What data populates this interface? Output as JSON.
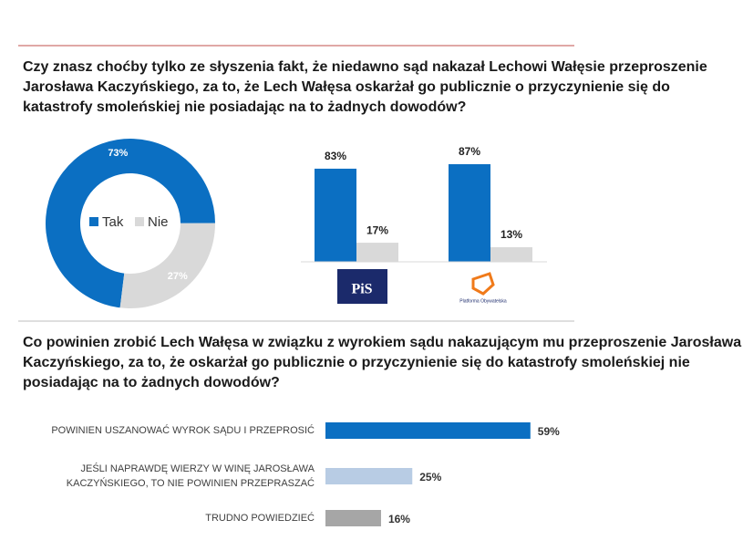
{
  "chart_data": [
    {
      "type": "pie",
      "title": "Czy znasz choćby tylko ze słyszenia fakt, że niedawno sąd nakazał Lechowi Wałęsie przeproszenie Jarosława Kaczyńskiego, za to, że Lech Wałęsa oskarżał go publicznie o przyczynienie się do katastrofy smoleńskiej nie posiadając na to żadnych dowodów?",
      "categories": [
        "Tak",
        "Nie"
      ],
      "values": [
        73,
        27
      ],
      "value_labels": [
        "73%",
        "27%"
      ],
      "colors": [
        "#0b6fc2",
        "#d9d9d9"
      ],
      "legend": "center"
    },
    {
      "type": "bar",
      "categories": [
        "PiS",
        "Platforma Obywatelska"
      ],
      "series": [
        {
          "color": "#0b6fc2",
          "values": [
            83,
            87
          ],
          "value_labels": [
            "83%",
            "87%"
          ]
        },
        {
          "color": "#d9d9d9",
          "values": [
            17,
            13
          ],
          "value_labels": [
            "17%",
            "13%"
          ]
        }
      ],
      "ylim": [
        0,
        100
      ]
    },
    {
      "type": "barh",
      "title": "Co powinien zrobić Lech Wałęsa w związku z wyrokiem sądu nakazującym mu przeproszenie Jarosława Kaczyńskiego, za to, że oskarżał go publicznie o przyczynienie się do katastrofy smoleńskiej nie posiadając na to żadnych dowodów?",
      "categories": [
        "POWINIEN USZANOWAĆ WYROK SĄDU I PRZEPROSIĆ",
        "JEŚLI NAPRAWDĘ WIERZY W WINĘ JAROSŁAWA KACZYŃSKIEGO, TO NIE POWINIEN PRZEPRASZAĆ",
        "TRUDNO POWIEDZIEĆ"
      ],
      "values": [
        59,
        25,
        16
      ],
      "value_labels": [
        "59%",
        "25%",
        "16%"
      ],
      "colors": [
        "#0b6fc2",
        "#b8cce4",
        "#a6a6a6"
      ],
      "xlim": [
        0,
        100
      ]
    }
  ]
}
